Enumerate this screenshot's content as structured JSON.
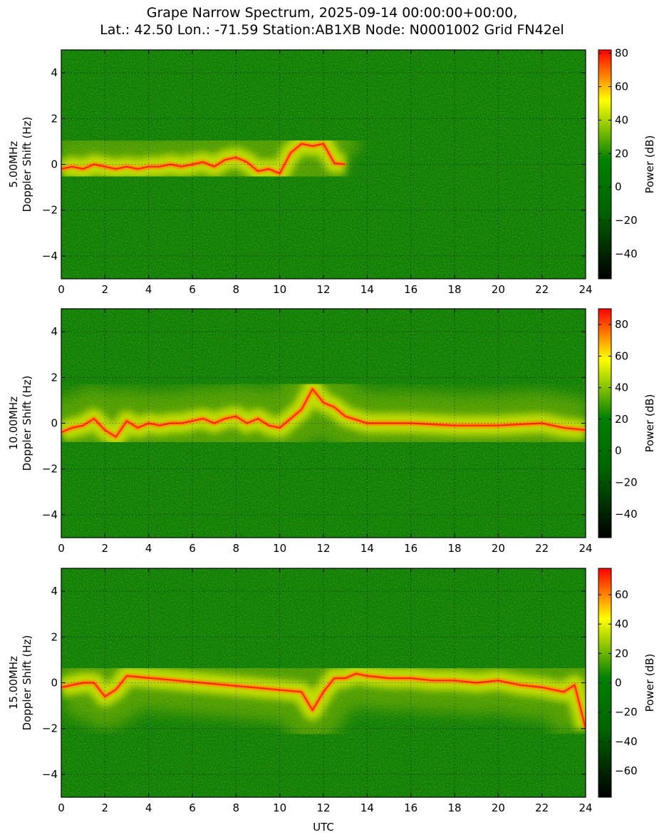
{
  "figure": {
    "title_line1": "Grape Narrow Spectrum, 2025-09-14 00:00:00+00:00,",
    "title_line2": "Lat.: 42.50 Lon.: -71.59 Station:AB1XB Node: N0001002 Grid FN42el",
    "xlabel": "UTC"
  },
  "colors": {
    "colormap": [
      "#000000",
      "#006400",
      "#008000",
      "#ffff00",
      "#ff0000"
    ]
  },
  "chart_data": [
    {
      "type": "heatmap",
      "title": "",
      "band": "5.00MHz",
      "ylabel_line1": "5.00MHz",
      "ylabel_line2": "Doppler Shift (Hz)",
      "xlabel": "",
      "xlim": [
        0,
        24
      ],
      "ylim": [
        -5,
        5
      ],
      "x_ticks": [
        0,
        2,
        4,
        6,
        8,
        10,
        12,
        14,
        16,
        18,
        20,
        22,
        24
      ],
      "y_ticks": [
        -4,
        -2,
        0,
        2,
        4
      ],
      "grid": true,
      "colorbar": {
        "label": "Power (dB)",
        "range": [
          -55,
          82
        ],
        "ticks": [
          -40,
          -20,
          0,
          20,
          40,
          60,
          80
        ]
      },
      "carrier_trace": {
        "x": [
          0,
          0.5,
          1,
          1.5,
          2,
          2.5,
          3,
          3.5,
          4,
          4.5,
          5,
          5.5,
          6,
          6.5,
          7,
          7.5,
          8,
          8.5,
          9,
          9.5,
          10,
          10.5,
          11,
          11.5,
          12,
          12.5,
          13
        ],
        "y": [
          -0.2,
          -0.1,
          -0.2,
          0.0,
          -0.1,
          -0.2,
          -0.1,
          -0.2,
          -0.1,
          -0.1,
          0.0,
          -0.1,
          0.0,
          0.1,
          -0.1,
          0.2,
          0.3,
          0.1,
          -0.3,
          -0.2,
          -0.4,
          0.5,
          0.9,
          0.8,
          0.9,
          0.05,
          0.0
        ],
        "x_end_visible": 12.5
      }
    },
    {
      "type": "heatmap",
      "title": "",
      "band": "10.00MHz",
      "ylabel_line1": "10.00MHz",
      "ylabel_line2": "Doppler Shift (Hz)",
      "xlabel": "",
      "xlim": [
        0,
        24
      ],
      "ylim": [
        -5,
        5
      ],
      "x_ticks": [
        0,
        2,
        4,
        6,
        8,
        10,
        12,
        14,
        16,
        18,
        20,
        22,
        24
      ],
      "y_ticks": [
        -4,
        -2,
        0,
        2,
        4
      ],
      "grid": true,
      "colorbar": {
        "label": "Power (dB)",
        "range": [
          -55,
          90
        ],
        "ticks": [
          -40,
          -20,
          0,
          20,
          40,
          60,
          80
        ]
      },
      "carrier_trace": {
        "x": [
          0,
          0.5,
          1,
          1.5,
          2,
          2.5,
          3,
          3.5,
          4,
          4.5,
          5,
          5.5,
          6,
          6.5,
          7,
          7.5,
          8,
          8.5,
          9,
          9.5,
          10,
          10.5,
          11,
          11.5,
          12,
          12.5,
          13,
          14,
          16,
          18,
          20,
          22,
          23,
          24
        ],
        "y": [
          -0.4,
          -0.2,
          -0.1,
          0.2,
          -0.3,
          -0.6,
          0.1,
          -0.2,
          0.0,
          -0.1,
          0.0,
          0.0,
          0.1,
          0.2,
          0.0,
          0.2,
          0.3,
          0.0,
          0.2,
          -0.1,
          -0.2,
          0.2,
          0.6,
          1.5,
          0.9,
          0.7,
          0.3,
          0.0,
          0.0,
          -0.1,
          -0.1,
          0.0,
          -0.2,
          -0.3
        ],
        "x_end_visible": 24
      }
    },
    {
      "type": "heatmap",
      "title": "",
      "band": "15.00MHz",
      "ylabel_line1": "15.00MHz",
      "ylabel_line2": "Doppler Shift (Hz)",
      "xlabel": "UTC",
      "xlim": [
        0,
        24
      ],
      "ylim": [
        -5,
        5
      ],
      "x_ticks": [
        0,
        2,
        4,
        6,
        8,
        10,
        12,
        14,
        16,
        18,
        20,
        22,
        24
      ],
      "y_ticks": [
        -4,
        -2,
        0,
        2,
        4
      ],
      "grid": true,
      "colorbar": {
        "label": "Power (dB)",
        "range": [
          -78,
          78
        ],
        "ticks": [
          -60,
          -40,
          -20,
          0,
          20,
          40,
          60
        ]
      },
      "carrier_trace": {
        "x": [
          0,
          0.5,
          1,
          1.5,
          2,
          2.5,
          3,
          11,
          11.5,
          12,
          12.5,
          13,
          13.5,
          14,
          15,
          16,
          17,
          18,
          19,
          20,
          21,
          22,
          23,
          23.5,
          24
        ],
        "y": [
          -0.2,
          -0.1,
          0.0,
          0.0,
          -0.6,
          -0.3,
          0.3,
          -0.4,
          -1.2,
          -0.4,
          0.2,
          0.2,
          0.4,
          0.3,
          0.2,
          0.2,
          0.1,
          0.1,
          0.0,
          0.1,
          -0.1,
          -0.2,
          -0.4,
          -0.1,
          -2.0
        ],
        "x_end_visible": 24
      }
    }
  ]
}
